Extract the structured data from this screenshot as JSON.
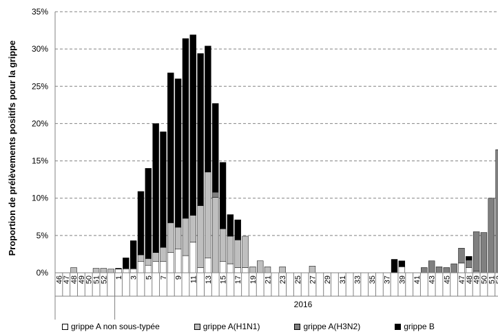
{
  "chart_data": {
    "type": "bar",
    "stacked": true,
    "ylabel": "Proportion de prélèvements positifs pour la grippe",
    "year_label": "2016",
    "ylim": [
      0,
      35
    ],
    "yticks": [
      "0%",
      "5%",
      "10%",
      "15%",
      "20%",
      "25%",
      "30%",
      "35%"
    ],
    "grid": "horizontal dashed",
    "legend_position": "bottom",
    "categories": [
      "46",
      "47",
      "48",
      "49",
      "50",
      "51",
      "52",
      "53",
      "1",
      "2",
      "3",
      "4",
      "5",
      "6",
      "7",
      "8",
      "9",
      "10",
      "11",
      "12",
      "13",
      "14",
      "15",
      "16",
      "17",
      "18",
      "19",
      "20",
      "21",
      "22",
      "23",
      "24",
      "25",
      "26",
      "27",
      "28",
      "29",
      "30",
      "31",
      "32",
      "33",
      "34",
      "35",
      "36",
      "37",
      "38",
      "39",
      "40",
      "41",
      "42",
      "43",
      "44",
      "45",
      "46",
      "47",
      "48",
      "49",
      "50",
      "51",
      "52"
    ],
    "tick_labels_shown": [
      "46",
      "48",
      "50",
      "52",
      "1",
      "3",
      "5",
      "7",
      "9",
      "11",
      "13",
      "15",
      "17",
      "19",
      "21",
      "23",
      "25",
      "27",
      "29",
      "31",
      "33",
      "35",
      "37",
      "39",
      "41",
      "43",
      "45",
      "47",
      "49",
      "51"
    ],
    "series": [
      {
        "name": "grippe A non sous-typée",
        "color": "#ffffff",
        "values": [
          0,
          0,
          0,
          0,
          0,
          0,
          0,
          0,
          0.5,
          0.5,
          0.5,
          1.5,
          1.0,
          1.5,
          1.5,
          2.7,
          3.2,
          2.3,
          4.1,
          0.7,
          2.0,
          0,
          1.5,
          1.2,
          0.7,
          0.7,
          0,
          0,
          0,
          0,
          0,
          0,
          0,
          0,
          0,
          0,
          0,
          0,
          0,
          0,
          0,
          0,
          0,
          0,
          0,
          0,
          0.8,
          0,
          0,
          0,
          0,
          0,
          0,
          0,
          1.3,
          0.7,
          0,
          0,
          0,
          0
        ]
      },
      {
        "name": "grippe A(H1N1)",
        "color": "#bfbfbf",
        "values": [
          0,
          0,
          0.7,
          0,
          0,
          0.6,
          0.6,
          0.5,
          0,
          0.1,
          0.1,
          0.9,
          0.9,
          1.2,
          1.9,
          4.0,
          2.9,
          5.0,
          3.6,
          8.3,
          11.5,
          10.1,
          4.4,
          3.7,
          3.7,
          4.2,
          0.8,
          1.6,
          0.8,
          0,
          0.8,
          0,
          0,
          0,
          0.9,
          0,
          0,
          0,
          0,
          0,
          0,
          0,
          0,
          0,
          0,
          0,
          0,
          0,
          0,
          0,
          0,
          0,
          0,
          0,
          0,
          0,
          0.2,
          0,
          0,
          0
        ]
      },
      {
        "name": "grippe A(H3N2)",
        "color": "#808080",
        "values": [
          0,
          0,
          0,
          0,
          0,
          0,
          0,
          0,
          0,
          0,
          0,
          0,
          0,
          0,
          0,
          0,
          0,
          0,
          0,
          0,
          0,
          0.7,
          0,
          0,
          0,
          0,
          0,
          0,
          0,
          0,
          0,
          0,
          0,
          0,
          0,
          0,
          0,
          0,
          0,
          0,
          0,
          0,
          0,
          0,
          0,
          0,
          0,
          0,
          0,
          0.7,
          1.6,
          0.8,
          0.7,
          1.2,
          2.0,
          1.0,
          5.3,
          5.4,
          10.0,
          16.5
        ]
      },
      {
        "name": "grippe B",
        "color": "#000000",
        "values": [
          0,
          0,
          0,
          0,
          0,
          0,
          0,
          0,
          0.1,
          1.4,
          3.7,
          8.5,
          12.1,
          17.3,
          15.5,
          20.1,
          19.9,
          24.1,
          24.2,
          20.4,
          16.9,
          11.9,
          8.9,
          2.9,
          2.7,
          0,
          0,
          0,
          0,
          0,
          0,
          0,
          0,
          0,
          0,
          0,
          0,
          0,
          0,
          0,
          0,
          0,
          0,
          0,
          0,
          1.8,
          0.8,
          0,
          0,
          0,
          0,
          0,
          0,
          0,
          0,
          0.5,
          0,
          0,
          0,
          0
        ]
      }
    ]
  }
}
